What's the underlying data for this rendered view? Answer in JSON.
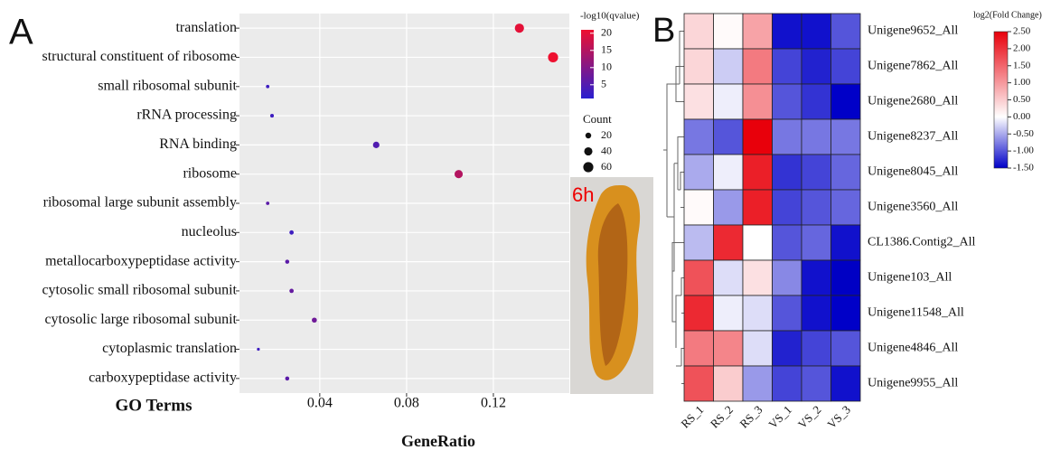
{
  "image_label": "6h",
  "chart_data": [
    {
      "type": "scatter",
      "panel": "A",
      "x_label": "GeneRatio",
      "y_label": "GO Terms",
      "categories": [
        "translation",
        "structural constituent of ribosome",
        "small ribosomal subunit",
        "rRNA processing",
        "RNA binding",
        "ribosome",
        "ribosomal large subunit assembly",
        "nucleolus",
        "metallocarboxypeptidase activity",
        "cytosolic small ribosomal subunit",
        "cytosolic large ribosomal subunit",
        "cytoplasmic translation",
        "carboxypeptidase activity"
      ],
      "x": [
        0.132,
        0.1475,
        0.016,
        0.018,
        0.066,
        0.104,
        0.016,
        0.027,
        0.025,
        0.027,
        0.0375,
        0.0117,
        0.025
      ],
      "count": [
        50,
        60,
        7,
        8,
        25,
        40,
        7,
        11,
        10,
        11,
        15,
        5,
        10
      ],
      "neg_log10_qvalue": [
        20,
        21,
        3,
        3,
        5,
        15,
        6,
        3,
        6,
        7,
        8,
        3,
        6
      ],
      "xlim": [
        0.003,
        0.155
      ],
      "xticks": [
        0.04,
        0.08,
        0.12
      ],
      "grid": true,
      "color_legend": {
        "title": "-log10(qvalue)",
        "lim": [
          1,
          21
        ],
        "ticks": [
          5,
          10,
          15,
          20
        ],
        "colors": [
          "#2a1fd0",
          "#ee1030"
        ]
      },
      "size_legend": {
        "title": "Count",
        "ticks": [
          20,
          40,
          60
        ]
      }
    },
    {
      "type": "heatmap",
      "panel": "B",
      "rows": [
        "Unigene9652_All",
        "Unigene7862_All",
        "Unigene2680_All",
        "Unigene8237_All",
        "Unigene8045_All",
        "Unigene3560_All",
        "CL1386.Contig2_All",
        "Unigene103_All",
        "Unigene11548_All",
        "Unigene4846_All",
        "Unigene9955_All"
      ],
      "columns": [
        "RS_1",
        "RS_2",
        "RS_3",
        "VS_1",
        "VS_2",
        "VS_3"
      ],
      "values": [
        [
          0.4,
          0.05,
          0.9,
          -1.4,
          -1.4,
          -1.0
        ],
        [
          0.4,
          -0.3,
          1.3,
          -1.1,
          -1.3,
          -1.1
        ],
        [
          0.3,
          -0.1,
          1.1,
          -1.0,
          -1.2,
          -1.5
        ],
        [
          -0.8,
          -1.0,
          2.5,
          -0.8,
          -0.8,
          -0.8
        ],
        [
          -0.5,
          -0.1,
          2.2,
          -1.2,
          -1.1,
          -0.9
        ],
        [
          0.05,
          -0.6,
          2.2,
          -1.1,
          -1.0,
          -0.9
        ],
        [
          -0.4,
          2.1,
          0.0,
          -1.0,
          -0.9,
          -1.4
        ],
        [
          1.7,
          -0.2,
          0.3,
          -0.7,
          -1.4,
          -1.6
        ],
        [
          2.1,
          -0.1,
          -0.2,
          -1.0,
          -1.4,
          -1.5
        ],
        [
          1.3,
          1.2,
          -0.2,
          -1.3,
          -1.1,
          -1.0
        ],
        [
          1.7,
          0.5,
          -0.6,
          -1.1,
          -1.0,
          -1.4
        ]
      ],
      "colorbar_title": "log2(Fold Change)",
      "zlim": [
        -1.5,
        2.5
      ],
      "zticks": [
        {
          "value": 2.5,
          "label": "2.50"
        },
        {
          "value": 2,
          "label": "2.00"
        },
        {
          "value": 1.5,
          "label": "1.50"
        },
        {
          "value": 1,
          "label": "1.00"
        },
        {
          "value": 0.5,
          "label": "0.50"
        },
        {
          "value": 0,
          "label": "0.00"
        },
        {
          "value": -0.5,
          "label": "-0.50"
        },
        {
          "value": -1,
          "label": "-1.00"
        },
        {
          "value": -1.5,
          "label": "-1.50"
        }
      ],
      "colors": [
        "#0000c8",
        "#ffffff",
        "#e8000b"
      ]
    }
  ]
}
